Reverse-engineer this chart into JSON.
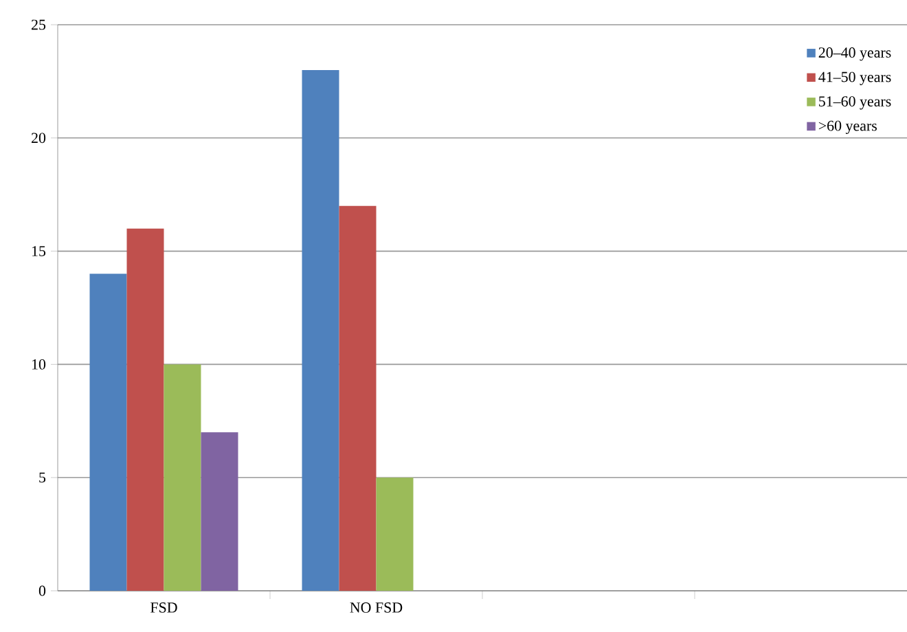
{
  "chart_data": {
    "type": "bar",
    "categories": [
      "FSD",
      "NO FSD",
      null,
      null
    ],
    "series": [
      {
        "name": "20–40 years",
        "color": "#4f81bd",
        "values": [
          14,
          23,
          null,
          null
        ]
      },
      {
        "name": "41–50 years",
        "color": "#c0504d",
        "values": [
          16,
          17,
          null,
          null
        ]
      },
      {
        "name": "51–60 years",
        "color": "#9bbb59",
        "values": [
          10,
          5,
          null,
          null
        ]
      },
      {
        "name": ">60 years",
        "color": "#8064a2",
        "values": [
          7,
          null,
          null,
          null
        ]
      }
    ],
    "ylim": [
      0,
      25
    ],
    "yticks": [
      0,
      5,
      10,
      15,
      20,
      25
    ],
    "grid": "y",
    "legend": "top right"
  }
}
